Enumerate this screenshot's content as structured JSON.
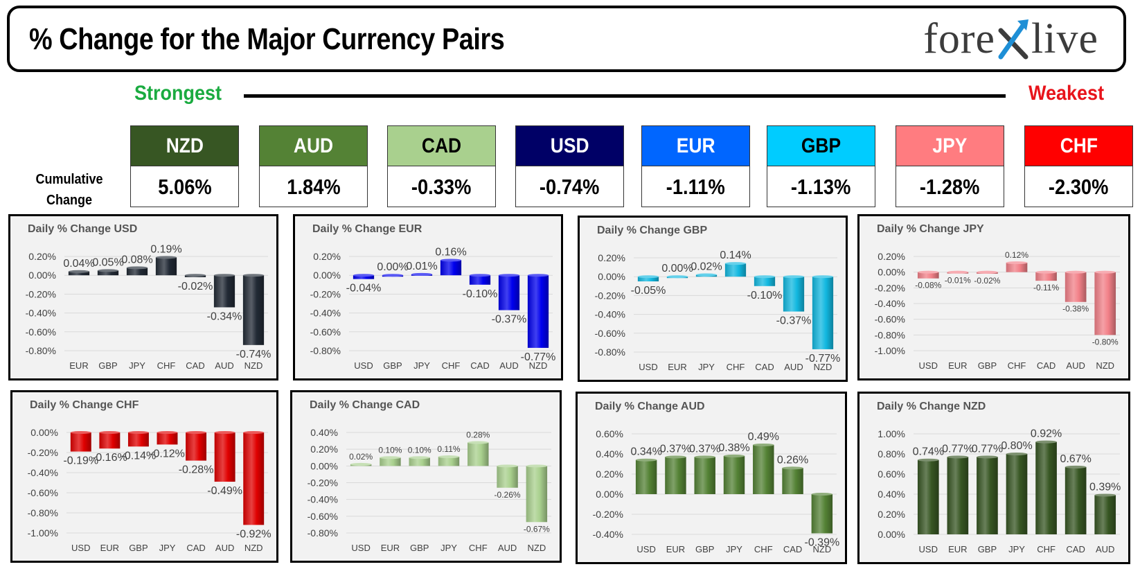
{
  "header": {
    "title": "% Change for the Major Currency Pairs",
    "logo_left": "fore",
    "logo_right": "live"
  },
  "scale": {
    "strongest_label": "Strongest",
    "weakest_label": "Weakest"
  },
  "cumulative": {
    "label_line1": "Cumulative",
    "label_line2": "Change",
    "currencies": [
      {
        "code": "NZD",
        "value": "5.06%",
        "bg": "#375623",
        "fg": "#ffffff"
      },
      {
        "code": "AUD",
        "value": "1.84%",
        "bg": "#548235",
        "fg": "#ffffff"
      },
      {
        "code": "CAD",
        "value": "-0.33%",
        "bg": "#a9d08e",
        "fg": "#000000"
      },
      {
        "code": "USD",
        "value": "-0.74%",
        "bg": "#000066",
        "fg": "#ffffff"
      },
      {
        "code": "EUR",
        "value": "-1.11%",
        "bg": "#0066ff",
        "fg": "#ffffff"
      },
      {
        "code": "GBP",
        "value": "-1.13%",
        "bg": "#00ccff",
        "fg": "#000000"
      },
      {
        "code": "JPY",
        "value": "-1.28%",
        "bg": "#ff7c80",
        "fg": "#ffffff"
      },
      {
        "code": "CHF",
        "value": "-2.30%",
        "bg": "#ff0000",
        "fg": "#ffffff"
      }
    ]
  },
  "chart_data": [
    {
      "type": "bar",
      "title": "Daily % Change USD",
      "color": "#222a35",
      "categories": [
        "EUR",
        "GBP",
        "JPY",
        "CHF",
        "CAD",
        "AUD",
        "NZD"
      ],
      "values": [
        0.04,
        0.05,
        0.08,
        0.19,
        -0.02,
        -0.34,
        -0.74
      ],
      "labels": [
        "0.04%",
        "0.05%",
        "0.08%",
        "0.19%",
        "-0.02%",
        "-0.34%",
        "-0.74%"
      ],
      "ylim": [
        -0.8,
        0.2
      ],
      "step": 0.2,
      "ticks": [
        "0.20%",
        "0.00%",
        "-0.20%",
        "-0.40%",
        "-0.60%",
        "-0.80%"
      ]
    },
    {
      "type": "bar",
      "title": "Daily % Change EUR",
      "color": "#0000ee",
      "categories": [
        "USD",
        "GBP",
        "JPY",
        "CHF",
        "CAD",
        "AUD",
        "NZD"
      ],
      "values": [
        -0.04,
        0.0,
        0.01,
        0.16,
        -0.1,
        -0.37,
        -0.77
      ],
      "labels": [
        "-0.04%",
        "0.00%",
        "0.01%",
        "0.16%",
        "-0.10%",
        "-0.37%",
        "-0.77%"
      ],
      "ylim": [
        -0.8,
        0.2
      ],
      "step": 0.2,
      "ticks": [
        "0.20%",
        "0.00%",
        "-0.20%",
        "-0.40%",
        "-0.60%",
        "-0.80%"
      ]
    },
    {
      "type": "bar",
      "title": "Daily % Change GBP",
      "color": "#12b8e0",
      "categories": [
        "USD",
        "EUR",
        "JPY",
        "CHF",
        "CAD",
        "AUD",
        "NZD"
      ],
      "values": [
        -0.05,
        0.0,
        0.02,
        0.14,
        -0.1,
        -0.37,
        -0.77
      ],
      "labels": [
        "-0.05%",
        "0.00%",
        "0.02%",
        "0.14%",
        "-0.10%",
        "-0.37%",
        "-0.77%"
      ],
      "ylim": [
        -0.8,
        0.2
      ],
      "step": 0.2,
      "ticks": [
        "0.20%",
        "0.00%",
        "-0.20%",
        "-0.40%",
        "-0.60%",
        "-0.80%"
      ]
    },
    {
      "type": "bar",
      "title": "Daily % Change JPY",
      "color": "#f28088",
      "categories": [
        "USD",
        "EUR",
        "GBP",
        "CHF",
        "CAD",
        "AUD",
        "NZD"
      ],
      "values": [
        -0.08,
        -0.01,
        -0.02,
        0.12,
        -0.11,
        -0.38,
        -0.8
      ],
      "labels": [
        "-0.08%",
        "-0.01%",
        "-0.02%",
        "0.12%",
        "-0.11%",
        "-0.38%",
        "-0.80%"
      ],
      "ylim": [
        -1.0,
        0.2
      ],
      "step": 0.2,
      "ticks": [
        "0.20%",
        "0.00%",
        "-0.20%",
        "-0.40%",
        "-0.60%",
        "-0.80%",
        "-1.00%"
      ]
    },
    {
      "type": "bar",
      "title": "Daily % Change CHF",
      "color": "#e00000",
      "categories": [
        "USD",
        "EUR",
        "GBP",
        "JPY",
        "CAD",
        "AUD",
        "NZD"
      ],
      "values": [
        -0.19,
        -0.16,
        -0.14,
        -0.12,
        -0.28,
        -0.49,
        -0.92
      ],
      "labels": [
        "-0.19%",
        "-0.16%",
        "-0.14%",
        "-0.12%",
        "-0.28%",
        "-0.49%",
        "-0.92%"
      ],
      "ylim": [
        -1.0,
        0.0
      ],
      "step": 0.2,
      "ticks": [
        "0.00%",
        "-0.20%",
        "-0.40%",
        "-0.60%",
        "-0.80%",
        "-1.00%"
      ]
    },
    {
      "type": "bar",
      "title": "Daily % Change CAD",
      "color": "#a9d08e",
      "categories": [
        "USD",
        "EUR",
        "GBP",
        "JPY",
        "CHF",
        "AUD",
        "NZD"
      ],
      "values": [
        0.02,
        0.1,
        0.1,
        0.11,
        0.28,
        -0.26,
        -0.67
      ],
      "labels": [
        "0.02%",
        "0.10%",
        "0.10%",
        "0.11%",
        "0.28%",
        "-0.26%",
        "-0.67%"
      ],
      "ylim": [
        -0.8,
        0.4
      ],
      "step": 0.2,
      "ticks": [
        "0.40%",
        "0.20%",
        "0.00%",
        "-0.20%",
        "-0.40%",
        "-0.60%",
        "-0.80%"
      ]
    },
    {
      "type": "bar",
      "title": "Daily % Change AUD",
      "color": "#548235",
      "categories": [
        "USD",
        "EUR",
        "GBP",
        "JPY",
        "CHF",
        "CAD",
        "NZD"
      ],
      "values": [
        0.34,
        0.37,
        0.37,
        0.38,
        0.49,
        0.26,
        -0.39
      ],
      "labels": [
        "0.34%",
        "0.37%",
        "0.37%",
        "0.38%",
        "0.49%",
        "0.26%",
        "-0.39%"
      ],
      "ylim": [
        -0.4,
        0.6
      ],
      "step": 0.2,
      "ticks": [
        "0.60%",
        "0.40%",
        "0.20%",
        "0.00%",
        "-0.20%",
        "-0.40%"
      ]
    },
    {
      "type": "bar",
      "title": "Daily % Change NZD",
      "color": "#375623",
      "categories": [
        "USD",
        "EUR",
        "GBP",
        "JPY",
        "CHF",
        "CAD",
        "AUD"
      ],
      "values": [
        0.74,
        0.77,
        0.77,
        0.8,
        0.92,
        0.67,
        0.39
      ],
      "labels": [
        "0.74%",
        "0.77%",
        "0.77%",
        "0.80%",
        "0.92%",
        "0.67%",
        "0.39%"
      ],
      "ylim": [
        0.0,
        1.0
      ],
      "step": 0.2,
      "ticks": [
        "1.00%",
        "0.80%",
        "0.60%",
        "0.40%",
        "0.20%",
        "0.00%"
      ]
    }
  ]
}
